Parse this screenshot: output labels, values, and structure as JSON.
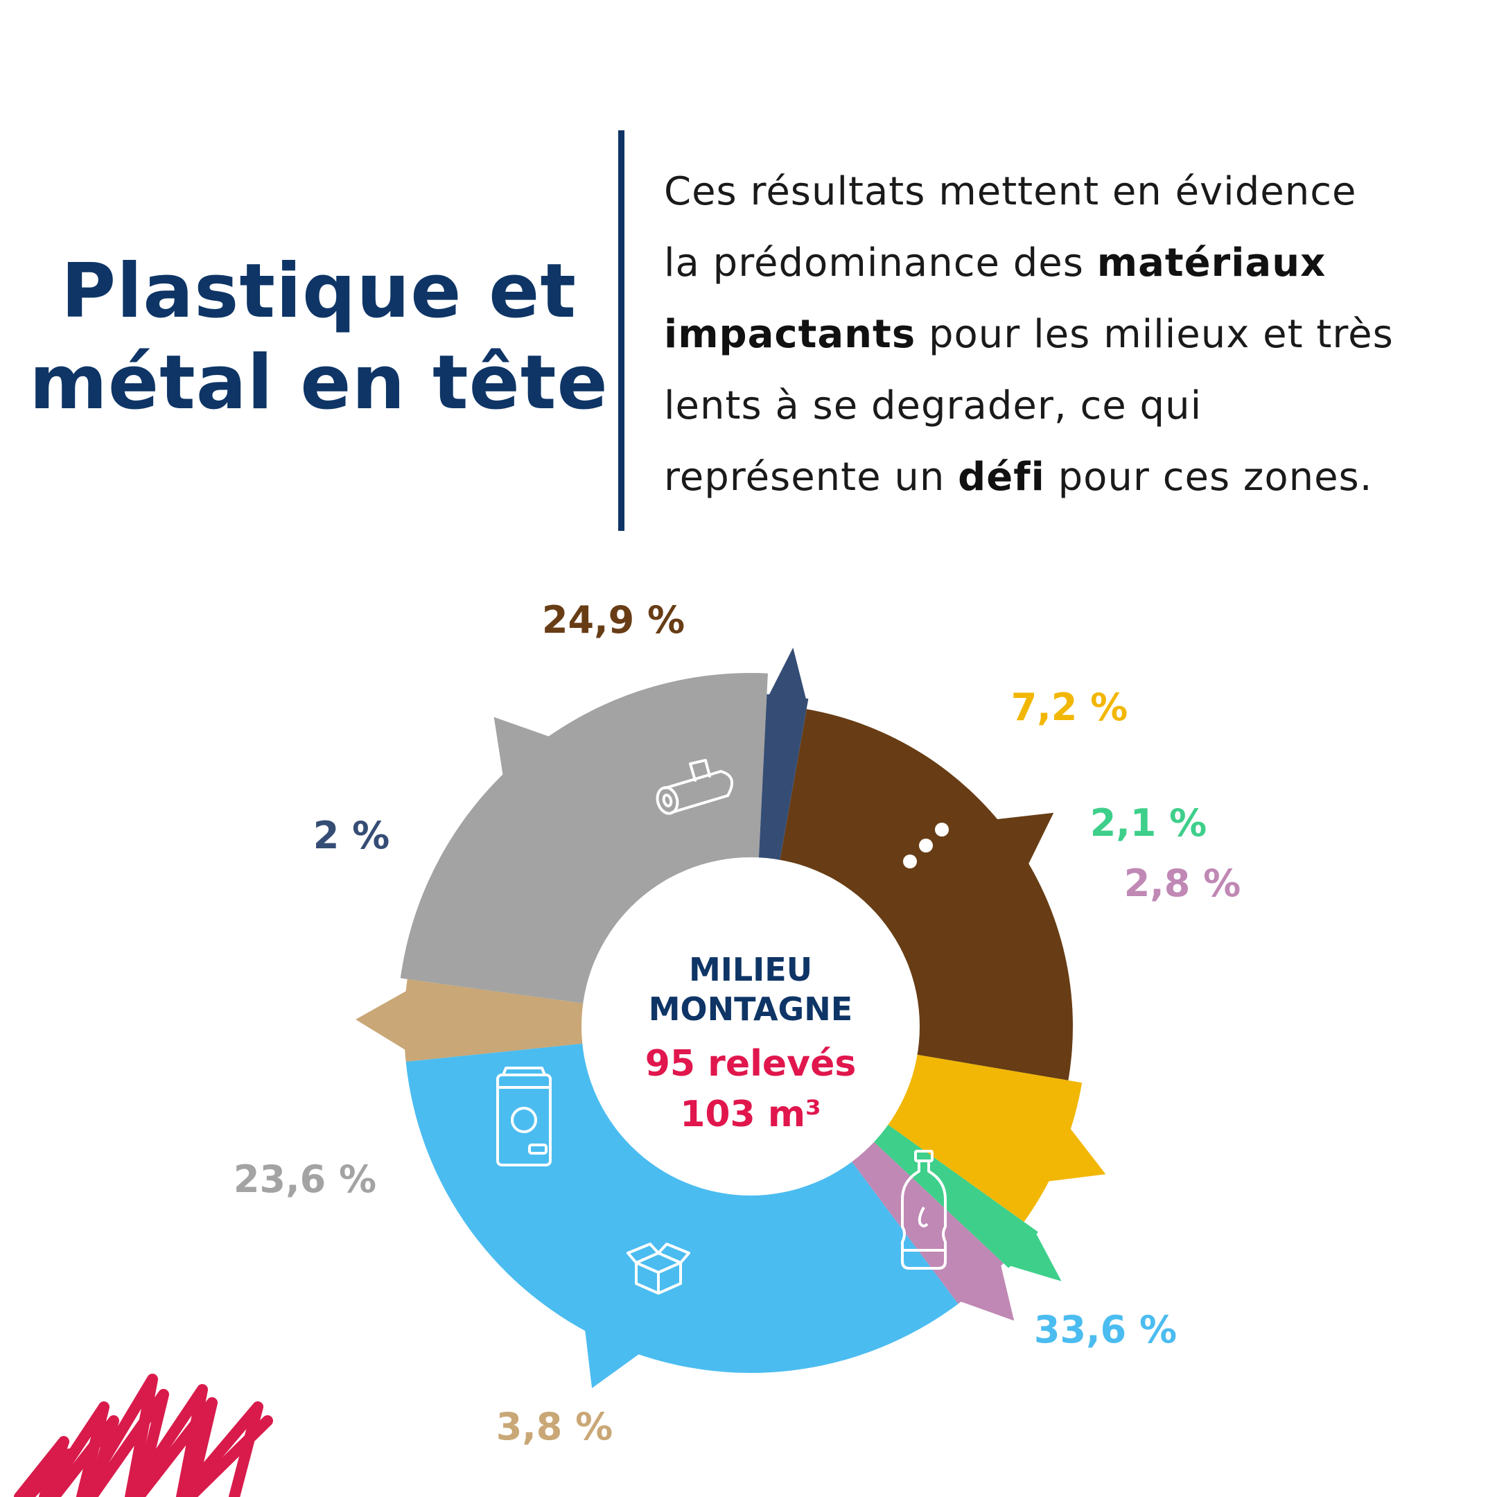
{
  "heading": {
    "line1": "Plastique et",
    "line2": "métal en tête"
  },
  "intro": {
    "line1": "Ces résultats mettent en évidence",
    "line2_a": "la prédominance des ",
    "line2_b": "matériaux",
    "line3_a": "impactants",
    "line3_b": " pour les milieux et très",
    "line4": "lents à se degrader, ce qui",
    "line5_a": "représente un ",
    "line5_b": "défi",
    "line5_c": " pour ces zones."
  },
  "center": {
    "line1": "MILIEU",
    "line2": "MONTAGNE",
    "line3": "95 relevés",
    "line4": "103 m³"
  },
  "chart_data": {
    "type": "pie",
    "title": "",
    "slices": [
      {
        "label": "24,9 %",
        "value": 24.9,
        "color": "#683d15",
        "icon": "log-icon"
      },
      {
        "label": "7,2 %",
        "value": 7.2,
        "color": "#f2b705",
        "icon": "ellipsis-icon"
      },
      {
        "label": "2,1 %",
        "value": 2.1,
        "color": "#3ecf8a",
        "icon": ""
      },
      {
        "label": "2,8 %",
        "value": 2.8,
        "color": "#c088b4",
        "icon": ""
      },
      {
        "label": "33,6 %",
        "value": 33.6,
        "color": "#4bbcf0",
        "icon": "bottle-icon"
      },
      {
        "label": "3,8 %",
        "value": 3.8,
        "color": "#c9a776",
        "icon": "box-icon"
      },
      {
        "label": "23,6 %",
        "value": 23.6,
        "color": "#a3a3a3",
        "icon": "can-icon"
      },
      {
        "label": "2 %",
        "value": 2,
        "color": "#354d75",
        "icon": ""
      }
    ]
  },
  "colors": {
    "navy": "#0e3566",
    "red": "#e0164d"
  }
}
